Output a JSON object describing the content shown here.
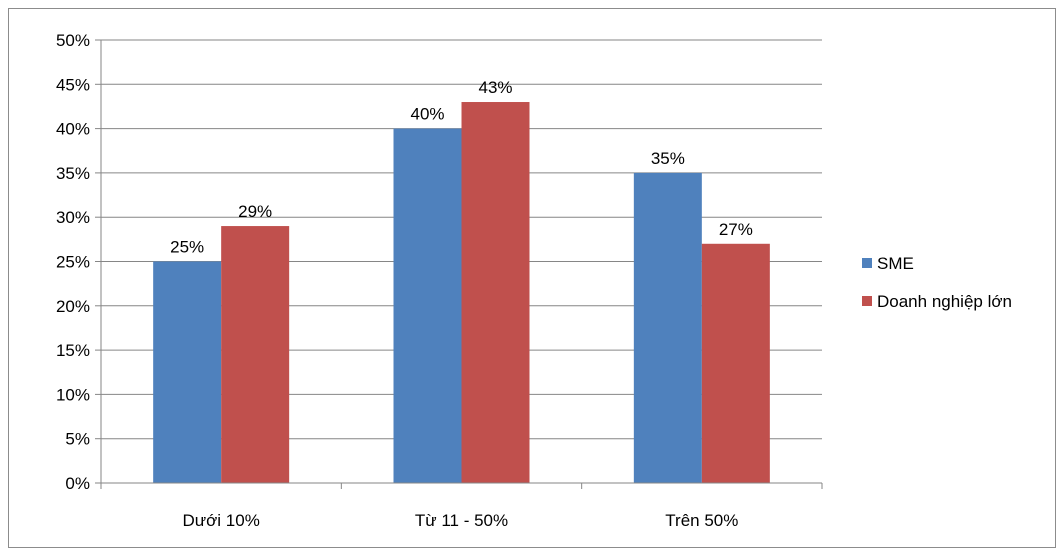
{
  "chart_data": {
    "type": "bar",
    "categories": [
      "Dưới 10%",
      "Từ 11 - 50%",
      "Trên 50%"
    ],
    "series": [
      {
        "name": "SME",
        "values": [
          25,
          40,
          35
        ],
        "labels": [
          "25%",
          "40%",
          "35%"
        ],
        "color": "#4f81bd"
      },
      {
        "name": "Doanh nghiệp lớn",
        "values": [
          29,
          43,
          27
        ],
        "labels": [
          "29%",
          "43%",
          "27%"
        ],
        "color": "#c0504d"
      }
    ],
    "ylim": [
      0,
      50
    ],
    "yticks": [
      "0%",
      "5%",
      "10%",
      "15%",
      "20%",
      "25%",
      "30%",
      "35%",
      "40%",
      "45%",
      "50%"
    ],
    "grid": true,
    "legend_position": "right"
  }
}
